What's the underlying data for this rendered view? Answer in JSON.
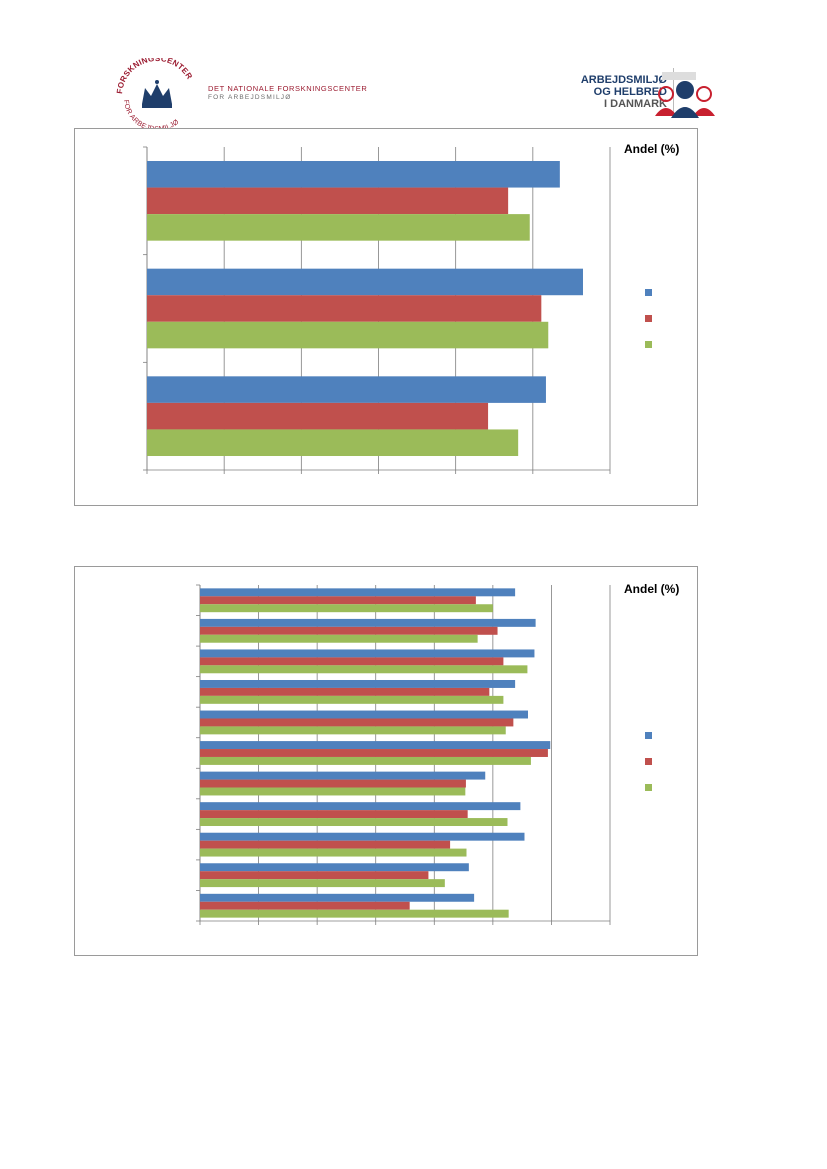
{
  "header": {
    "left_logo_ring_text": "FORSKNINGSCENTER FOR ARBEJDSMILJØ",
    "left_org_name": "DET NATIONALE FORSKNINGSCENTER",
    "left_org_sub": "FOR ARBEJDSMILJØ",
    "right_logo_line1": "ARBEJDSMILJØ",
    "right_logo_line2": "OG HELBRED",
    "right_logo_line3": "I DANMARK"
  },
  "colors": {
    "blue": "#4f81bd",
    "red": "#c0504d",
    "green": "#9bbb59",
    "border": "#9a9a9a"
  },
  "chart_data": [
    {
      "type": "bar",
      "orientation": "horizontal",
      "legend_title": "Andel (%)",
      "legend_placement": "right",
      "categories": [
        "",
        "",
        ""
      ],
      "xlim": [
        0,
        6
      ],
      "grid": true,
      "series": [
        {
          "values": [
            5.35,
            5.65,
            5.17
          ]
        },
        {
          "values": [
            4.68,
            5.11,
            4.42
          ]
        },
        {
          "values": [
            4.96,
            5.2,
            4.81
          ]
        }
      ]
    },
    {
      "type": "bar",
      "orientation": "horizontal",
      "legend_title": "Andel (%)",
      "legend_placement": "right",
      "categories": [
        "",
        "",
        "",
        "",
        "",
        "",
        "",
        "",
        "",
        "",
        ""
      ],
      "xlim": [
        0,
        7
      ],
      "grid": true,
      "series": [
        {
          "values": [
            5.38,
            5.73,
            5.71,
            5.38,
            5.6,
            5.98,
            4.87,
            5.47,
            5.54,
            4.59,
            4.68
          ]
        },
        {
          "values": [
            4.71,
            5.08,
            5.18,
            4.94,
            5.35,
            5.94,
            4.54,
            4.57,
            4.27,
            3.9,
            3.58
          ]
        },
        {
          "values": [
            5.0,
            4.74,
            5.59,
            5.18,
            5.22,
            5.65,
            4.53,
            5.25,
            4.55,
            4.18,
            5.27
          ]
        }
      ]
    }
  ]
}
